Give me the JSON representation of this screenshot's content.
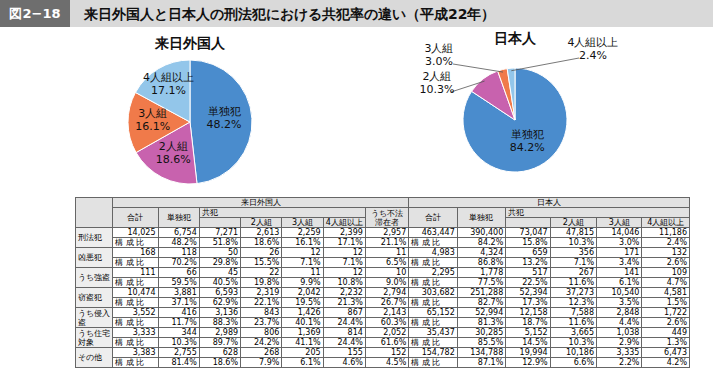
{
  "figure_label": "図2−18",
  "title": "来日外国人と日本人の刑法犯における共犯率の違い（平成22年）",
  "chart_data": [
    {
      "type": "pie",
      "title": "来日外国人",
      "categories": [
        "単独犯",
        "2人組",
        "3人組",
        "4人組以上"
      ],
      "values": [
        48.2,
        18.6,
        16.1,
        17.1
      ],
      "value_labels": [
        "48.2%",
        "18.6%",
        "16.1%",
        "17.1%"
      ],
      "colors": [
        "#4a8ccd",
        "#c862ae",
        "#f07a4a",
        "#93c6ea"
      ],
      "data_labels": true
    },
    {
      "type": "pie",
      "title": "日本人",
      "categories": [
        "単独犯",
        "2人組",
        "3人組",
        "4人組以上"
      ],
      "values": [
        84.2,
        10.3,
        3.0,
        2.4
      ],
      "value_labels": [
        "84.2%",
        "10.3%",
        "3.0%",
        "2.4%"
      ],
      "colors": [
        "#4a8ccd",
        "#c862ae",
        "#f07a4a",
        "#93c6ea"
      ],
      "data_labels": true
    }
  ],
  "table": {
    "group_headers": [
      "来日外国人",
      "日本人"
    ],
    "col_headers": [
      "合計",
      "単独犯",
      "共犯",
      "2人組",
      "3人組",
      "4人組以上",
      "うち不法滞在者"
    ],
    "ratio_label": "構 成 比",
    "rows": [
      {
        "label": "刑法犯",
        "counts": [
          "14,025",
          "6,754",
          "7,271",
          "2,613",
          "2,259",
          "2,399",
          "2,957",
          "463,447",
          "390,400",
          "73,047",
          "47,815",
          "14,046",
          "11,186"
        ],
        "ratios": [
          "48.2%",
          "51.8%",
          "18.6%",
          "16.1%",
          "17.1%",
          "21.1%",
          "84.2%",
          "15.8%",
          "10.3%",
          "3.0%",
          "2.4%"
        ]
      },
      {
        "label": "凶悪犯",
        "counts": [
          "168",
          "118",
          "50",
          "26",
          "12",
          "12",
          "11",
          "4,983",
          "4,324",
          "659",
          "356",
          "171",
          "132"
        ],
        "ratios": [
          "70.2%",
          "29.8%",
          "15.5%",
          "7.1%",
          "7.1%",
          "6.5%",
          "86.8%",
          "13.2%",
          "7.1%",
          "3.4%",
          "2.6%"
        ]
      },
      {
        "label": "うち強盗",
        "counts": [
          "111",
          "66",
          "45",
          "22",
          "11",
          "12",
          "10",
          "2,295",
          "1,778",
          "517",
          "267",
          "141",
          "109"
        ],
        "ratios": [
          "59.5%",
          "40.5%",
          "19.8%",
          "9.9%",
          "10.8%",
          "9.0%",
          "77.5%",
          "22.5%",
          "11.6%",
          "6.1%",
          "4.7%"
        ]
      },
      {
        "label": "窃盗犯",
        "counts": [
          "10,474",
          "3,881",
          "6,593",
          "2,319",
          "2,042",
          "2,232",
          "2,794",
          "303,682",
          "251,288",
          "52,394",
          "37,273",
          "10,540",
          "4,581"
        ],
        "ratios": [
          "37.1%",
          "62.9%",
          "22.1%",
          "19.5%",
          "21.3%",
          "26.7%",
          "82.7%",
          "17.3%",
          "12.3%",
          "3.5%",
          "1.5%"
        ]
      },
      {
        "label": "うち侵入盗",
        "counts": [
          "3,552",
          "416",
          "3,136",
          "843",
          "1,426",
          "867",
          "2,143",
          "65,152",
          "52,994",
          "12,158",
          "7,588",
          "2,848",
          "1,722"
        ],
        "ratios": [
          "11.7%",
          "88.3%",
          "23.7%",
          "40.1%",
          "24.4%",
          "60.3%",
          "81.3%",
          "18.7%",
          "11.6%",
          "4.4%",
          "2.6%"
        ]
      },
      {
        "label": "うち住宅対象",
        "counts": [
          "3,333",
          "344",
          "2,989",
          "806",
          "1,369",
          "814",
          "2,052",
          "35,437",
          "30,285",
          "5,152",
          "3,665",
          "1,038",
          "449"
        ],
        "ratios": [
          "10.3%",
          "89.7%",
          "24.2%",
          "41.1%",
          "24.4%",
          "61.6%",
          "85.5%",
          "14.5%",
          "10.3%",
          "2.9%",
          "1.3%"
        ]
      },
      {
        "label": "その他",
        "counts": [
          "3,383",
          "2,755",
          "628",
          "268",
          "205",
          "155",
          "152",
          "154,782",
          "134,788",
          "19,994",
          "10,186",
          "3,335",
          "6,473"
        ],
        "ratios": [
          "81.4%",
          "18.6%",
          "7.9%",
          "6.1%",
          "4.6%",
          "4.5%",
          "87.1%",
          "12.9%",
          "6.6%",
          "2.2%",
          "4.2%"
        ]
      }
    ]
  }
}
